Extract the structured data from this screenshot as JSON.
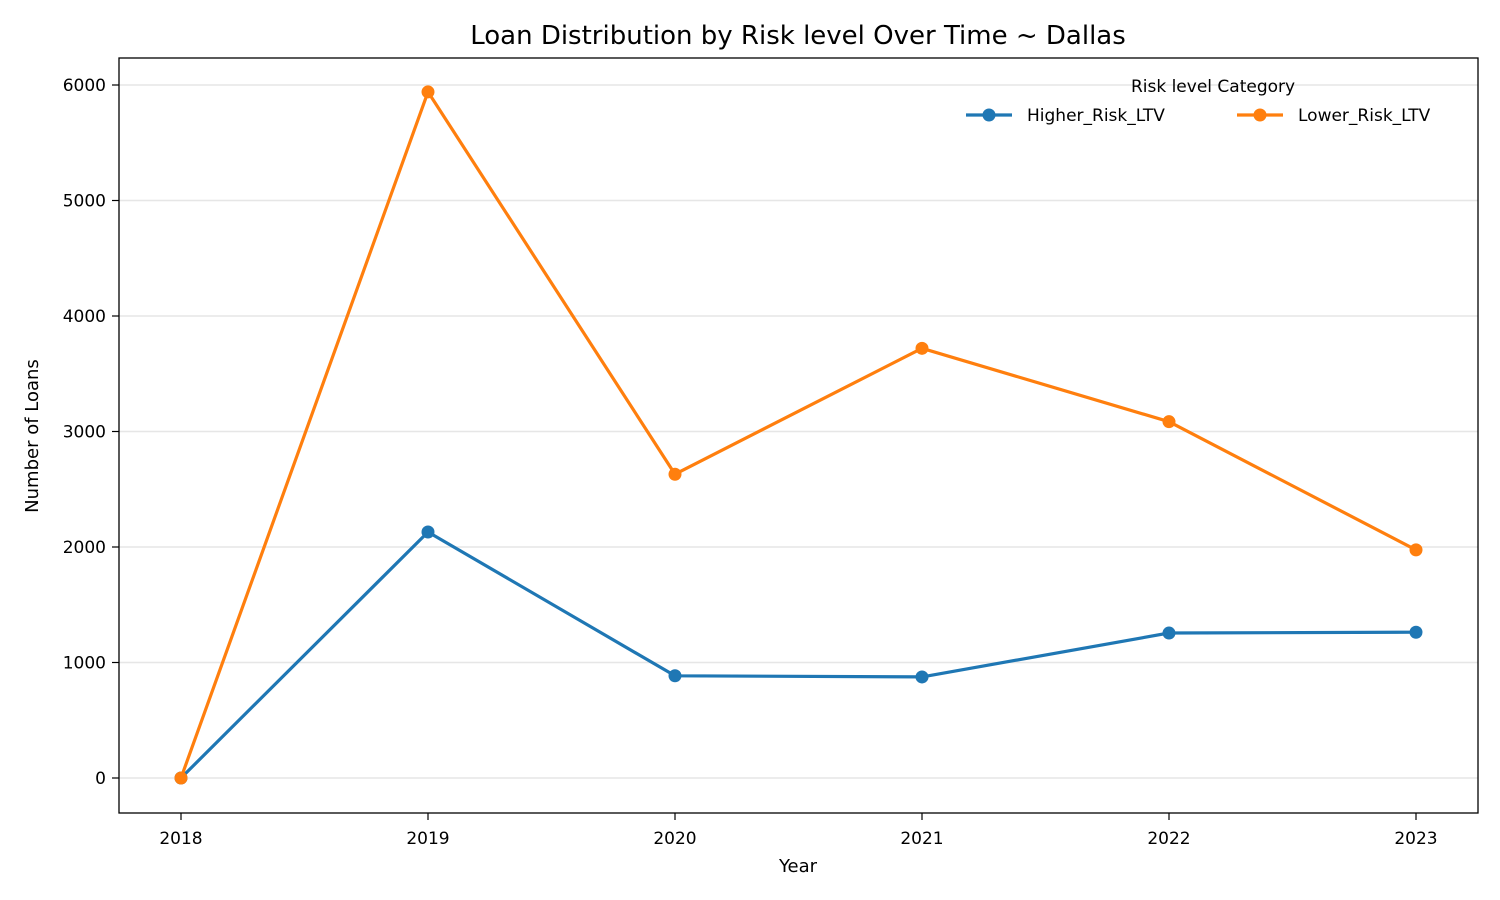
{
  "chart_data": {
    "type": "line",
    "title": "Loan Distribution by Risk level Over Time ~ Dallas",
    "xlabel": "Year",
    "ylabel": "Number of Loans",
    "x": [
      "2018",
      "2019",
      "2020",
      "2021",
      "2022",
      "2023"
    ],
    "x_tick_labels": [
      "2018",
      "2019",
      "2020",
      "2021",
      "2022",
      "2023"
    ],
    "y_ticks": [
      0,
      1000,
      2000,
      3000,
      4000,
      5000,
      6000
    ],
    "y_tick_labels": [
      "0",
      "1000",
      "2000",
      "3000",
      "4000",
      "5000",
      "6000"
    ],
    "ylim": [
      -300,
      6250
    ],
    "grid": "horizontal",
    "legend": {
      "title": "Risk level Category",
      "placement": "top-right"
    },
    "series": [
      {
        "name": "Higher_Risk_LTV",
        "color": "#1f77b4",
        "values": [
          0,
          2130,
          885,
          875,
          1255,
          1262
        ]
      },
      {
        "name": "Lower_Risk_LTV",
        "color": "#ff7f0e",
        "values": [
          0,
          5940,
          2630,
          3720,
          3085,
          1975
        ]
      }
    ]
  }
}
